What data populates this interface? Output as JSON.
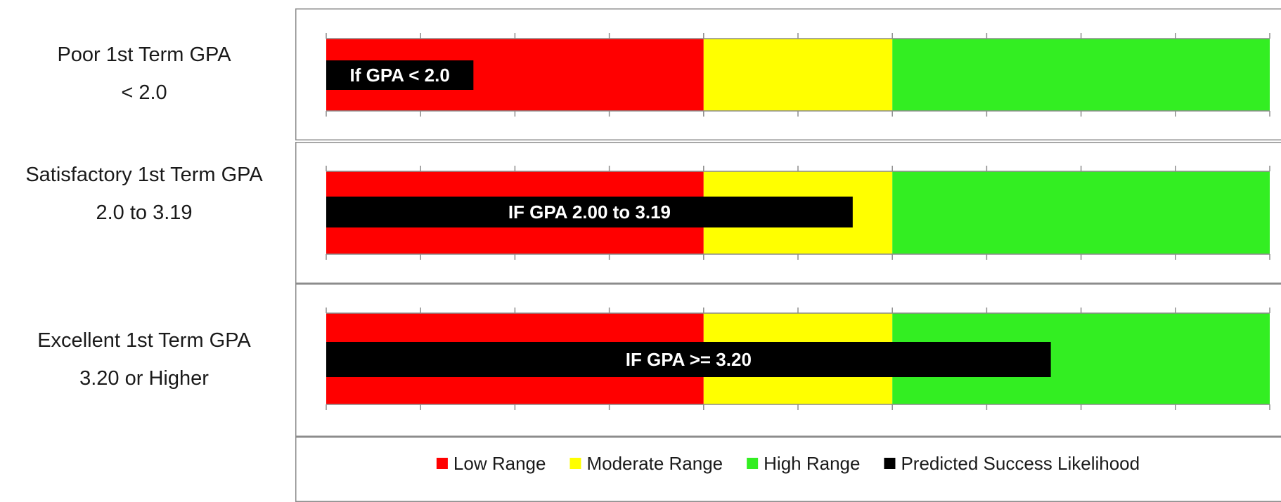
{
  "chart_data": {
    "type": "bar",
    "orientation": "horizontal",
    "variant": "bullet",
    "xlim": [
      0,
      10
    ],
    "grid": false,
    "legend_position": "bottom",
    "rows": [
      {
        "label_line1": "Poor 1st Term GPA",
        "label_line2": "< 2.0",
        "bar_label": "If GPA < 2.0",
        "value": 1.56
      },
      {
        "label_line1": "Satisfactory 1st Term GPA",
        "label_line2": "2.0 to 3.19",
        "bar_label": "IF GPA 2.00 to 3.19",
        "value": 5.58
      },
      {
        "label_line1": "Excellent 1st Term GPA",
        "label_line2": "3.20 or Higher",
        "bar_label": "IF GPA >= 3.20",
        "value": 7.68
      }
    ],
    "ranges": [
      {
        "name": "Low Range",
        "start": 0,
        "end": 4,
        "color": "#ff0000"
      },
      {
        "name": "Moderate Range",
        "start": 4,
        "end": 6,
        "color": "#ffff00"
      },
      {
        "name": "High Range",
        "start": 6,
        "end": 10,
        "color": "#33ee22"
      }
    ],
    "measure": {
      "name": "Predicted Success Likelihood",
      "color": "#000000"
    },
    "ticks": [
      0,
      1,
      2,
      3,
      4,
      5,
      6,
      7,
      8,
      9,
      10
    ]
  }
}
